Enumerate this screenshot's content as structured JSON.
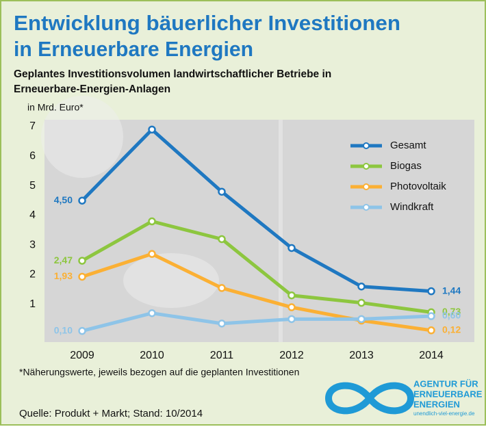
{
  "chart_data": {
    "type": "line",
    "title": [
      "Entwicklung bäuerlicher Investitionen",
      "in Erneuerbare Energien"
    ],
    "subtitle": [
      "Geplantes Investitionsvolumen landwirtschaftlicher Betriebe in",
      "Erneuerbare-Energien-Anlagen"
    ],
    "y_label": "in Mrd. Euro*",
    "categories": [
      "2009",
      "2010",
      "2011",
      "2012",
      "2013",
      "2014"
    ],
    "series": [
      {
        "name": "Gesamt",
        "color": "#1f78c1",
        "values": [
          4.5,
          6.9,
          4.8,
          2.9,
          1.6,
          1.44
        ],
        "value_labels": [
          "4,50",
          null,
          null,
          null,
          null,
          "1,44"
        ]
      },
      {
        "name": "Biogas",
        "color": "#8dc63f",
        "values": [
          2.47,
          3.8,
          3.2,
          1.3,
          1.05,
          0.73
        ],
        "value_labels": [
          "2,47",
          null,
          null,
          null,
          null,
          "0,73"
        ]
      },
      {
        "name": "Photovoltaik",
        "color": "#fbb034",
        "values": [
          1.93,
          2.7,
          1.55,
          0.9,
          0.45,
          0.12
        ],
        "value_labels": [
          "1,93",
          null,
          null,
          null,
          null,
          "0,12"
        ]
      },
      {
        "name": "Windkraft",
        "color": "#8ec4e8",
        "values": [
          0.1,
          0.7,
          0.35,
          0.5,
          0.5,
          0.6
        ],
        "value_labels": [
          "0,10",
          null,
          null,
          null,
          null,
          "0,60"
        ]
      }
    ],
    "ylim": [
      0,
      7
    ],
    "yticks": [
      1,
      2,
      3,
      4,
      5,
      6,
      7
    ],
    "grid": false,
    "legend": "top-right",
    "footnote": "*Näherungswerte, jeweils bezogen auf die geplanten Investitionen",
    "source": "Quelle: Produkt + Markt; Stand: 10/2014",
    "logo": [
      "AGENTUR FÜR",
      "ERNEUERBARE",
      "ENERGIEN",
      "unendlich-viel-energie.de"
    ]
  }
}
